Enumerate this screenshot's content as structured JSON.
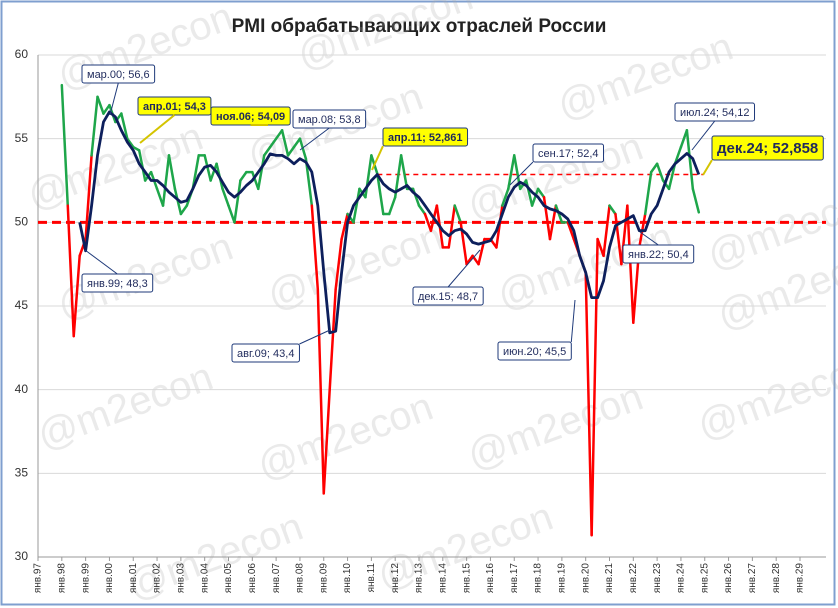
{
  "chart_data": {
    "type": "line",
    "title": "PMI обрабатывающих отраслей России",
    "watermark": "@m2econ",
    "categories": [
      "янв.97",
      null,
      null,
      null,
      "янв.98",
      null,
      null,
      null,
      "янв.99",
      null,
      null,
      null,
      "янв.00",
      null,
      null,
      null,
      "янв.01",
      null,
      null,
      null,
      "янв.02",
      null,
      null,
      null,
      "янв.03",
      null,
      null,
      null,
      "янв.04",
      null,
      null,
      null,
      "янв.05",
      null,
      null,
      null,
      "янв.06",
      null,
      null,
      null,
      "янв.07",
      null,
      null,
      null,
      "янв.08",
      null,
      null,
      null,
      "янв.09",
      null,
      null,
      null,
      "янв.10",
      null,
      null,
      null,
      "янв.11",
      null,
      null,
      null,
      "янв.12",
      null,
      null,
      null,
      "янв.13",
      null,
      null,
      null,
      "янв.14",
      null,
      null,
      null,
      "янв.15",
      null,
      null,
      null,
      "янв.16",
      null,
      null,
      null,
      "янв.17",
      null,
      null,
      null,
      "янв.18",
      null,
      null,
      null,
      "янв.19",
      null,
      null,
      null,
      "янв.20",
      null,
      null,
      null,
      "янв.21",
      null,
      null,
      null,
      "янв.22",
      null,
      null,
      null,
      "янв.23",
      null,
      null,
      null,
      "янв.24",
      null,
      null,
      null,
      "янв.25",
      null,
      null,
      null,
      "янв.26",
      null,
      null,
      null,
      "янв.27",
      null,
      null,
      null,
      "янв.28",
      null,
      null,
      null,
      "янв.29",
      null,
      null,
      null
    ],
    "series": [
      {
        "color": "#1ea64a",
        "below_color": "#ff0000",
        "values": [
          null,
          null,
          null,
          null,
          58.2,
          51,
          43.2,
          48,
          49,
          54,
          57.5,
          56.5,
          57,
          56,
          56.5,
          55,
          54.5,
          54.3,
          52.5,
          53,
          52,
          51,
          54,
          52,
          50.5,
          51,
          52,
          54,
          54,
          52.5,
          53.5,
          52,
          51,
          50,
          52.5,
          53,
          53,
          52,
          54,
          54.5,
          55,
          55.5,
          54,
          54.5,
          55,
          53.8,
          51,
          46,
          33.8,
          40,
          46,
          49,
          50.5,
          50,
          52,
          51.5,
          54,
          52.9,
          50.5,
          50.5,
          51.5,
          54,
          52,
          52,
          51,
          50.5,
          49.5,
          51,
          48.5,
          48.5,
          51,
          50,
          47.5,
          48,
          47.5,
          49,
          49,
          48.5,
          51,
          52,
          54,
          52,
          52.5,
          51,
          52,
          51.5,
          49,
          51,
          50,
          50,
          49,
          48,
          47,
          31.3,
          49,
          48,
          51,
          50.5,
          47.5,
          51,
          44,
          48.5,
          50.5,
          53,
          53.5,
          52.5,
          52,
          53.5,
          54.5,
          55.5,
          52,
          50.6,
          null,
          null,
          null,
          null,
          null,
          null,
          null,
          null,
          null,
          null,
          null,
          null,
          null,
          null,
          null,
          null,
          null,
          null,
          null,
          null
        ]
      },
      {
        "color": "#0d1f5c",
        "values": [
          null,
          null,
          null,
          null,
          null,
          null,
          null,
          50,
          48.3,
          51,
          54,
          56,
          56.6,
          56.3,
          55.5,
          54.8,
          54.3,
          53.5,
          53,
          52.5,
          52.5,
          52.2,
          51.8,
          51.5,
          51.2,
          51.3,
          52,
          52.8,
          53.3,
          53.4,
          53,
          52.4,
          51.8,
          51.5,
          51.8,
          52.2,
          52.5,
          53,
          53.5,
          54.09,
          54,
          54,
          53.8,
          53.5,
          53.8,
          53.6,
          53,
          51,
          47,
          43.4,
          43.5,
          47,
          50,
          51,
          51.5,
          52,
          52.5,
          52.86,
          52.3,
          52,
          51.8,
          52,
          52.2,
          51.8,
          51.5,
          51,
          50.5,
          50,
          49.5,
          49.2,
          49.5,
          49.6,
          49.3,
          48.8,
          48.7,
          48.8,
          48.9,
          49.5,
          50.5,
          51.5,
          52.1,
          52.4,
          52.2,
          51.8,
          51.5,
          51,
          50.8,
          50.7,
          50.5,
          50.2,
          49.5,
          48,
          47,
          45.5,
          45.5,
          46.5,
          48.5,
          49.8,
          50,
          50.2,
          50.4,
          49.5,
          49.5,
          50.5,
          51,
          52,
          53,
          53.5,
          53.8,
          54.12,
          53.8,
          52.86,
          null,
          null,
          null,
          null,
          null,
          null,
          null,
          null,
          null,
          null,
          null,
          null,
          null,
          null,
          null,
          null,
          null,
          null,
          null,
          null
        ]
      }
    ],
    "reference_line": {
      "value": 50,
      "color": "#ff0000"
    },
    "level_line": {
      "value": 52.861,
      "color": "#ff0000"
    },
    "ylim": [
      30,
      60
    ],
    "yticks": [
      30,
      35,
      40,
      45,
      50,
      55,
      60
    ],
    "grid": true,
    "annotations": [
      {
        "text": "мар.00; 56,6",
        "highlight": false
      },
      {
        "text": "апр.01; 54,3",
        "highlight": true
      },
      {
        "text": "ноя.06; 54,09",
        "highlight": true
      },
      {
        "text": "мар.08; 53,8",
        "highlight": false
      },
      {
        "text": "апр.11; 52,861",
        "highlight": true
      },
      {
        "text": "сен.17; 52,4",
        "highlight": false
      },
      {
        "text": "июл.24; 54,12",
        "highlight": false
      },
      {
        "text": "дек.24; 52,858",
        "highlight": true
      },
      {
        "text": "янв.99; 48,3",
        "highlight": false
      },
      {
        "text": "авг.09; 43,4",
        "highlight": false
      },
      {
        "text": "дек.15; 48,7",
        "highlight": false
      },
      {
        "text": "янв.22; 50,4",
        "highlight": false
      },
      {
        "text": "июн.20; 45,5",
        "highlight": false
      }
    ]
  }
}
